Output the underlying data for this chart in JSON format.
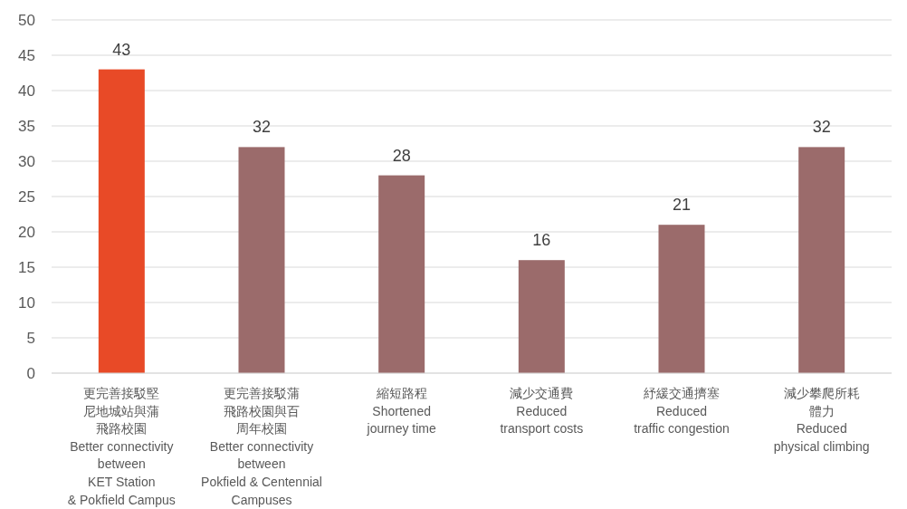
{
  "chart_data": {
    "type": "bar",
    "categories": [
      "更完善接駁堅尼地城站與蒲飛路校園\nBetter connectivity\nbetween\nKET Station\n& Pokfield Campus",
      "更完善接駁蒲飛路校園與百周年校園\nBetter connectivity\nbetween\nPokfield & Centennial\nCampuses",
      "縮短路程\nShortened\njourney time",
      "減少交通費\nReduced\ntransport costs",
      "紓緩交通擠塞\nReduced\ntraffic congestion",
      "減少攀爬所耗體力\nReduced\nphysical climbing"
    ],
    "values": [
      43,
      32,
      28,
      16,
      21,
      32
    ],
    "colors": [
      "#e84a27",
      "#9b6b6b",
      "#9b6b6b",
      "#9b6b6b",
      "#9b6b6b",
      "#9b6b6b"
    ],
    "ylim": [
      0,
      50
    ],
    "yticks": [
      0,
      5,
      10,
      15,
      20,
      25,
      30,
      35,
      40,
      45,
      50
    ],
    "grid": "y",
    "data_labels": true
  }
}
